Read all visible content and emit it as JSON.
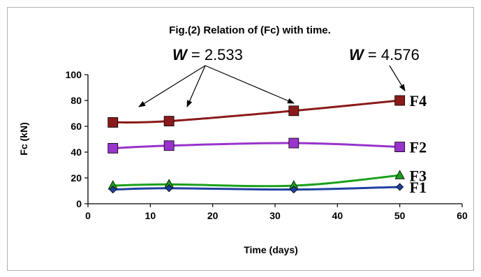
{
  "chart_data": {
    "type": "line",
    "title": "Fig.(2) Relation of (Fc) with time.",
    "xlabel": "Time (days)",
    "ylabel": "Fc (kN)",
    "xlim": [
      0,
      60
    ],
    "ylim": [
      0,
      100
    ],
    "xticks": [
      0,
      10,
      20,
      30,
      40,
      50,
      60
    ],
    "yticks": [
      0,
      20,
      40,
      60,
      80,
      100
    ],
    "x": [
      4,
      13,
      33,
      50
    ],
    "grid": false,
    "legend": "none",
    "series": [
      {
        "name": "F4",
        "values": [
          63,
          64,
          72,
          80
        ],
        "color": "#8b1a1a",
        "marker": "square"
      },
      {
        "name": "F2",
        "values": [
          43,
          45,
          47,
          44
        ],
        "color": "#9933cc",
        "marker": "square"
      },
      {
        "name": "F3",
        "values": [
          14,
          15,
          14,
          22
        ],
        "color": "#1aa01a",
        "marker": "triangle"
      },
      {
        "name": "F1",
        "values": [
          11,
          12,
          11,
          13
        ],
        "color": "#1f3fa0",
        "marker": "diamond"
      }
    ],
    "annotations": [
      {
        "w_symbol": "W",
        "text": " = 2.533"
      },
      {
        "w_symbol": "W",
        "text": " = 4.576"
      }
    ]
  }
}
